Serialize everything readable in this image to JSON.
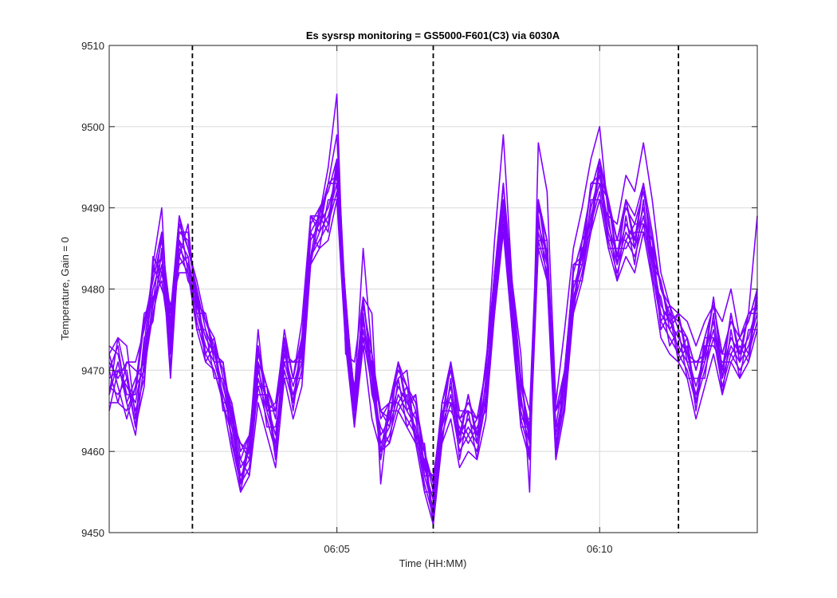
{
  "chart_data": {
    "type": "line",
    "title": "Es sysrsp monitoring = GS5000-F601(C3) via 6030A",
    "xlabel": "Time (HH:MM)",
    "ylabel": "Temperature, Gain = 0",
    "xlim": [
      "06:00:40",
      "06:13:00"
    ],
    "ylim": [
      9450,
      9510
    ],
    "yticks": [
      9450,
      9460,
      9470,
      9480,
      9490,
      9500,
      9510
    ],
    "xticks": [
      {
        "time": "06:05:00",
        "label": "06:05"
      },
      {
        "time": "06:10:00",
        "label": "06:10"
      }
    ],
    "grid": true,
    "series_color": "#8000ff",
    "vlines": {
      "style": "dashed",
      "color": "#000000",
      "times": [
        "06:02:15",
        "06:06:50",
        "06:11:30"
      ]
    },
    "x": [
      "06:00:40",
      "06:00:50",
      "06:01:00",
      "06:01:10",
      "06:01:20",
      "06:01:30",
      "06:01:40",
      "06:01:50",
      "06:02:00",
      "06:02:10",
      "06:02:20",
      "06:02:30",
      "06:02:40",
      "06:02:50",
      "06:03:00",
      "06:03:10",
      "06:03:20",
      "06:03:30",
      "06:03:40",
      "06:03:50",
      "06:04:00",
      "06:04:10",
      "06:04:20",
      "06:04:30",
      "06:04:40",
      "06:04:50",
      "06:05:00",
      "06:05:10",
      "06:05:20",
      "06:05:30",
      "06:05:40",
      "06:05:50",
      "06:06:00",
      "06:06:10",
      "06:06:20",
      "06:06:30",
      "06:06:40",
      "06:06:50",
      "06:07:00",
      "06:07:10",
      "06:07:20",
      "06:07:30",
      "06:07:40",
      "06:07:50",
      "06:08:00",
      "06:08:10",
      "06:08:20",
      "06:08:30",
      "06:08:40",
      "06:08:50",
      "06:09:00",
      "06:09:10",
      "06:09:20",
      "06:09:30",
      "06:09:40",
      "06:09:50",
      "06:10:00",
      "06:10:10",
      "06:10:20",
      "06:10:30",
      "06:10:40",
      "06:10:50",
      "06:11:00",
      "06:11:10",
      "06:11:20",
      "06:11:30",
      "06:11:40",
      "06:11:50",
      "06:12:00",
      "06:12:10",
      "06:12:20",
      "06:12:30",
      "06:12:40",
      "06:12:50",
      "06:13:00"
    ],
    "base": [
      9469,
      9470,
      9468,
      9466,
      9472,
      9480,
      9484,
      9474,
      9486,
      9484,
      9478,
      9474,
      9472,
      9468,
      9464,
      9458,
      9460,
      9470,
      9466,
      9462,
      9472,
      9468,
      9472,
      9486,
      9488,
      9490,
      9494,
      9476,
      9466,
      9476,
      9470,
      9462,
      9464,
      9468,
      9466,
      9464,
      9458,
      9454,
      9464,
      9468,
      9462,
      9464,
      9462,
      9468,
      9480,
      9490,
      9478,
      9466,
      9462,
      9488,
      9484,
      9462,
      9468,
      9480,
      9484,
      9490,
      9494,
      9488,
      9484,
      9488,
      9486,
      9490,
      9484,
      9478,
      9476,
      9474,
      9472,
      9468,
      9472,
      9476,
      9470,
      9474,
      9472,
      9474,
      9478
    ],
    "series": [
      {
        "offsets": [
          0,
          0,
          0,
          0,
          0,
          0,
          0,
          0,
          0,
          0,
          0,
          0,
          0,
          0,
          0,
          0,
          0,
          0,
          0,
          0,
          0,
          0,
          0,
          0,
          0,
          0,
          0,
          0,
          0,
          0,
          0,
          0,
          0,
          0,
          0,
          0,
          0,
          0,
          0,
          0,
          0,
          0,
          0,
          0,
          0,
          0,
          0,
          0,
          0,
          0,
          0,
          0,
          0,
          0,
          0,
          0,
          0,
          0,
          0,
          0,
          0,
          0,
          0,
          0,
          0,
          0,
          0,
          0,
          0,
          0,
          0,
          0,
          0,
          0,
          0
        ]
      },
      {
        "offsets": [
          3,
          4,
          5,
          -2,
          1,
          3,
          6,
          -4,
          2,
          1,
          2,
          1,
          0,
          3,
          -3,
          -2,
          1,
          5,
          -1,
          4,
          2,
          1,
          4,
          3,
          1,
          5,
          10,
          -4,
          5,
          3,
          7,
          -6,
          2,
          1,
          4,
          -3,
          3,
          -3,
          2,
          3,
          3,
          1,
          2,
          2,
          6,
          9,
          3,
          6,
          -7,
          10,
          8,
          4,
          7,
          5,
          6,
          6,
          6,
          1,
          4,
          6,
          6,
          8,
          7,
          4,
          2,
          3,
          4,
          5,
          4,
          2,
          6,
          6,
          2,
          3,
          11
        ]
      },
      {
        "offsets": [
          -3,
          -4,
          -3,
          2,
          -2,
          -3,
          -2,
          4,
          -4,
          -2,
          -3,
          -3,
          -2,
          -2,
          -4,
          -3,
          -3,
          -4,
          -4,
          -4,
          -3,
          -4,
          -4,
          -3,
          -3,
          -4,
          -3,
          -3,
          -3,
          -3,
          -6,
          -2,
          -3,
          -3,
          -3,
          -3,
          -3,
          -3,
          -3,
          -4,
          -4,
          -4,
          -3,
          -4,
          -3,
          -3,
          -3,
          -3,
          -3,
          -3,
          -3,
          -3,
          -3,
          -3,
          -3,
          -3,
          -3,
          -3,
          -3,
          -4,
          -4,
          -3,
          -3,
          -4,
          -4,
          -3,
          -3,
          -4,
          -4,
          -4,
          -3,
          -3,
          -3,
          -3,
          -3
        ]
      },
      {
        "offsets": [
          2,
          -1,
          3,
          5,
          3,
          2,
          3,
          1,
          1,
          2,
          1,
          2,
          1,
          2,
          1,
          1,
          2,
          1,
          2,
          2,
          2,
          1,
          2,
          1,
          1,
          3,
          5,
          2,
          1,
          9,
          2,
          3,
          2,
          2,
          2,
          1,
          2,
          1,
          2,
          2,
          2,
          2,
          2,
          2,
          2,
          3,
          3,
          3,
          3,
          3,
          2,
          3,
          2,
          2,
          2,
          2,
          2,
          3,
          2,
          3,
          3,
          3,
          3,
          2,
          2,
          1,
          2,
          2,
          2,
          2,
          2,
          2,
          2,
          2,
          2
        ]
      },
      {
        "offsets": [
          -2,
          1,
          -2,
          -4,
          -1,
          -2,
          -1,
          -2,
          -1,
          -1,
          -1,
          -1,
          -1,
          -1,
          -1,
          -1,
          -1,
          -1,
          -1,
          -1,
          -1,
          -1,
          -1,
          -2,
          -1,
          -1,
          -1,
          -1,
          -1,
          -1,
          -1,
          -1,
          -1,
          -1,
          -1,
          -1,
          -1,
          -1,
          -1,
          -1,
          -1,
          -1,
          -1,
          -1,
          -1,
          -1,
          -1,
          -1,
          -1,
          -1,
          -1,
          -1,
          -1,
          -1,
          -1,
          -1,
          -1,
          -1,
          -1,
          -1,
          -1,
          -1,
          -1,
          -1,
          -1,
          -1,
          -1,
          -1,
          -1,
          -1,
          -1,
          -1,
          -1,
          -1,
          -1
        ]
      },
      {
        "offsets": [
          4,
          2,
          -1,
          1,
          4,
          1,
          2,
          3,
          3,
          1,
          3,
          2,
          2,
          1,
          2,
          2,
          2,
          2,
          2,
          3,
          3,
          1,
          2,
          2,
          2,
          2,
          2,
          2,
          1,
          2,
          2,
          2,
          2,
          3,
          2,
          2,
          2,
          2,
          2,
          2,
          2,
          1,
          2,
          2,
          2,
          1,
          2,
          2,
          1,
          2,
          2,
          1,
          2,
          2,
          2,
          2,
          2,
          2,
          2,
          2,
          2,
          2,
          2,
          2,
          1,
          2,
          2,
          2,
          2,
          2,
          2,
          2,
          2,
          2,
          2
        ]
      },
      {
        "offsets": [
          -1,
          -3,
          1,
          -1,
          -3,
          -1,
          -3,
          -1,
          -2,
          -2,
          -2,
          -2,
          -2,
          -2,
          -2,
          -2,
          -2,
          -2,
          -2,
          -2,
          -2,
          -2,
          -2,
          -2,
          -2,
          -2,
          -2,
          -2,
          -2,
          -2,
          -2,
          -2,
          -2,
          -2,
          -2,
          -2,
          -2,
          -2,
          -2,
          -2,
          -2,
          -2,
          -2,
          -2,
          -2,
          -2,
          -2,
          -2,
          -2,
          -2,
          -2,
          -2,
          -2,
          -2,
          -2,
          -2,
          -2,
          -2,
          -2,
          -2,
          -2,
          -2,
          -2,
          -2,
          -2,
          -2,
          -2,
          -2,
          -2,
          -2,
          -2,
          -2,
          -2,
          -2,
          -2
        ]
      },
      {
        "offsets": [
          1,
          3,
          -2,
          3,
          -1,
          2,
          0,
          2,
          1,
          3,
          0,
          3,
          0,
          3,
          0,
          3,
          0,
          3,
          0,
          3,
          0,
          3,
          0,
          3,
          0,
          3,
          0,
          3,
          0,
          3,
          0,
          3,
          0,
          3,
          0,
          3,
          0,
          3,
          0,
          3,
          0,
          3,
          0,
          3,
          0,
          3,
          0,
          3,
          0,
          3,
          0,
          3,
          0,
          3,
          0,
          3,
          0,
          3,
          0,
          3,
          0,
          3,
          0,
          3,
          0,
          3,
          0,
          3,
          0,
          3,
          0,
          3,
          0,
          3,
          0
        ]
      },
      {
        "offsets": [
          -4,
          0,
          2,
          -3,
          2,
          -4,
          1,
          -5,
          0,
          -3,
          1,
          -3,
          1,
          -3,
          1,
          -3,
          1,
          -3,
          1,
          -3,
          1,
          -3,
          1,
          -3,
          1,
          -3,
          1,
          -3,
          1,
          -3,
          1,
          -3,
          1,
          -3,
          1,
          -3,
          1,
          -3,
          1,
          -3,
          1,
          -3,
          1,
          -3,
          1,
          -3,
          1,
          -3,
          1,
          -3,
          1,
          -3,
          1,
          -3,
          1,
          -3,
          1,
          -3,
          1,
          -3,
          1,
          -3,
          1,
          -3,
          1,
          -3,
          1,
          -3,
          1,
          -3,
          1,
          -3,
          1,
          -3,
          1
        ]
      },
      {
        "offsets": [
          3,
          -2,
          -4,
          2,
          5,
          -2,
          3,
          -1,
          -2,
          4,
          -1,
          3,
          -1,
          3,
          -1,
          3,
          -1,
          3,
          -1,
          3,
          -1,
          3,
          -1,
          3,
          -1,
          3,
          -1,
          3,
          -1,
          3,
          -1,
          3,
          -1,
          3,
          -1,
          3,
          -1,
          3,
          -1,
          3,
          -1,
          3,
          -1,
          3,
          -1,
          3,
          -1,
          3,
          -1,
          3,
          -1,
          3,
          -1,
          3,
          -1,
          3,
          -1,
          3,
          -1,
          3,
          -1,
          3,
          -1,
          3,
          -1,
          3,
          -1,
          3,
          -1,
          3,
          -1,
          3,
          -1,
          3,
          -1
        ]
      },
      {
        "offsets": [
          -2,
          4,
          1,
          -3,
          -4,
          4,
          -2,
          2,
          3,
          -2,
          2,
          -2,
          2,
          -2,
          2,
          -2,
          2,
          -2,
          2,
          -2,
          2,
          -2,
          2,
          -2,
          2,
          -2,
          2,
          -2,
          2,
          -2,
          2,
          -2,
          2,
          -2,
          2,
          -2,
          2,
          -2,
          2,
          -2,
          2,
          -2,
          2,
          -2,
          2,
          -2,
          2,
          -2,
          2,
          -2,
          2,
          -2,
          2,
          -2,
          2,
          -2,
          2,
          -2,
          2,
          -2,
          2,
          -2,
          2,
          -2,
          2,
          -2,
          2,
          -2,
          2,
          -2,
          2,
          -2,
          2,
          -2,
          2
        ]
      },
      {
        "offsets": [
          1,
          -4,
          3,
          4,
          -3,
          3,
          -4,
          3,
          -3,
          0,
          -3,
          1,
          -3,
          1,
          -3,
          1,
          -3,
          1,
          -3,
          1,
          -3,
          1,
          -3,
          1,
          -3,
          1,
          -3,
          1,
          -3,
          1,
          -3,
          1,
          -3,
          1,
          -3,
          1,
          -3,
          1,
          -3,
          1,
          -3,
          1,
          -3,
          1,
          -3,
          1,
          -3,
          1,
          -3,
          1,
          -3,
          1,
          -3,
          1,
          -3,
          1,
          -3,
          1,
          -3,
          1,
          -3,
          1,
          -3,
          1,
          -3,
          1,
          -3,
          1,
          -3,
          1,
          -3,
          1,
          -3,
          1,
          -3
        ]
      }
    ]
  }
}
